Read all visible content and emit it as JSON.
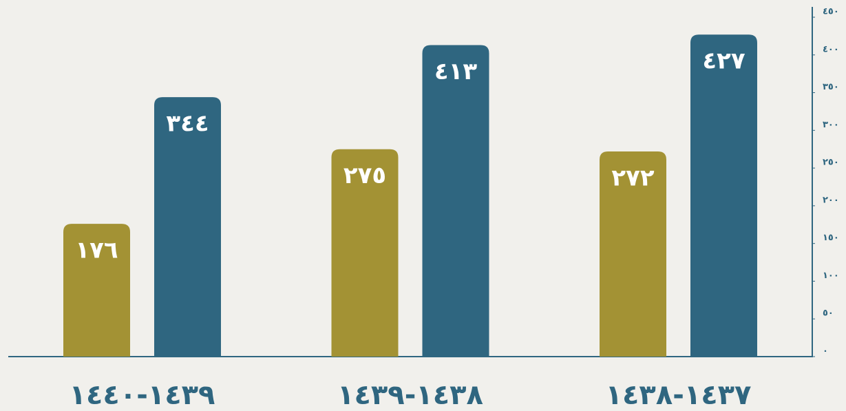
{
  "chart_data": {
    "type": "bar",
    "categories": [
      "١٤٣٨-١٤٣٧",
      "١٤٣٩-١٤٣٨",
      "١٤٤٠-١٤٣٩"
    ],
    "series": [
      {
        "color": "#2f6680",
        "values": [
          427,
          413,
          344
        ],
        "value_labels": [
          "٤٢٧",
          "٤١٣",
          "٣٤٤"
        ]
      },
      {
        "color": "#a39234",
        "values": [
          272,
          275,
          176
        ],
        "value_labels": [
          "٢٧٢",
          "٢٧٥",
          "١٧٦"
        ]
      }
    ],
    "ylim": [
      0,
      450
    ],
    "yticks": [
      {
        "value": 0,
        "label": "٠"
      },
      {
        "value": 50,
        "label": "٥٠"
      },
      {
        "value": 100,
        "label": "١٠٠"
      },
      {
        "value": 150,
        "label": "١٥٠"
      },
      {
        "value": 200,
        "label": "٢٠٠"
      },
      {
        "value": 250,
        "label": "٢٥٠"
      },
      {
        "value": 300,
        "label": "٣٠٠"
      },
      {
        "value": 350,
        "label": "٣٥٠"
      },
      {
        "value": 400,
        "label": "٤٠٠"
      },
      {
        "value": 450,
        "label": "٤٥٠"
      }
    ],
    "grid": false
  }
}
